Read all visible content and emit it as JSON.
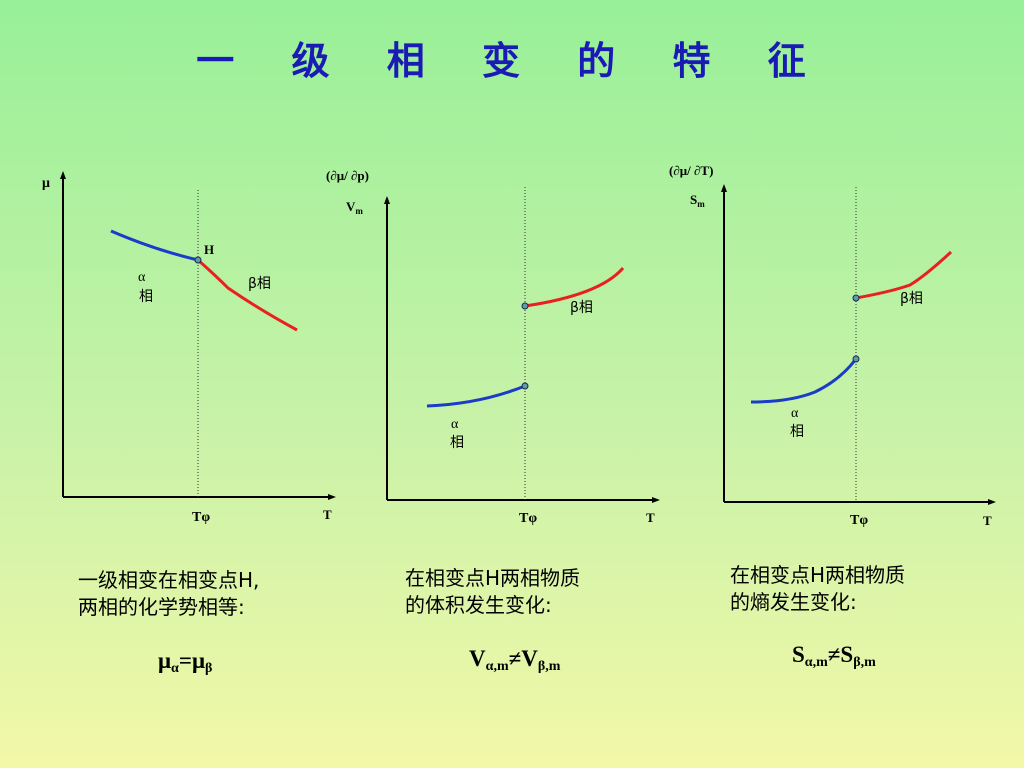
{
  "title": "一 级 相 变 的 特 征",
  "colors": {
    "alpha_curve": "#1a3cc8",
    "beta_curve": "#e82020",
    "title": "#1a1ab4",
    "point": "#5aa0a0"
  },
  "panels": [
    {
      "y_label": "μ",
      "x_label": "T",
      "transition_label": "Tφ",
      "point_label": "H",
      "alpha_label": "α",
      "alpha_label2": "相",
      "beta_label": "β相",
      "caption_line1": "一级相变在相变点H,",
      "caption_line2": "两相的化学势相等:",
      "formula": {
        "a": "μ",
        "a_sub": "α",
        "op": "=",
        "b": "μ",
        "b_sub": "β"
      }
    },
    {
      "y_label": "(∂μ/ ∂p)",
      "y_label2": "V",
      "y_label2_sub": "m",
      "x_label": "T",
      "transition_label": "Tφ",
      "alpha_label": "α",
      "alpha_label2": "相",
      "beta_label": "β相",
      "caption_line1": "在相变点H两相物质",
      "caption_line2": "的体积发生变化:",
      "formula": {
        "a": "V",
        "a_sub": "α,m",
        "op": "≠",
        "b": "V",
        "b_sub": "β,m"
      }
    },
    {
      "y_label": "(∂μ/ ∂T)",
      "y_label2": "S",
      "y_label2_sub": "m",
      "x_label": "T",
      "transition_label": "Tφ",
      "alpha_label": "α",
      "alpha_label2": "相",
      "beta_label": "β相",
      "caption_line1": "在相变点H两相物质",
      "caption_line2": "的熵发生变化:",
      "formula": {
        "a": "S",
        "a_sub": "α,m",
        "op": "≠",
        "b": "S",
        "b_sub": "β,m"
      }
    }
  ]
}
